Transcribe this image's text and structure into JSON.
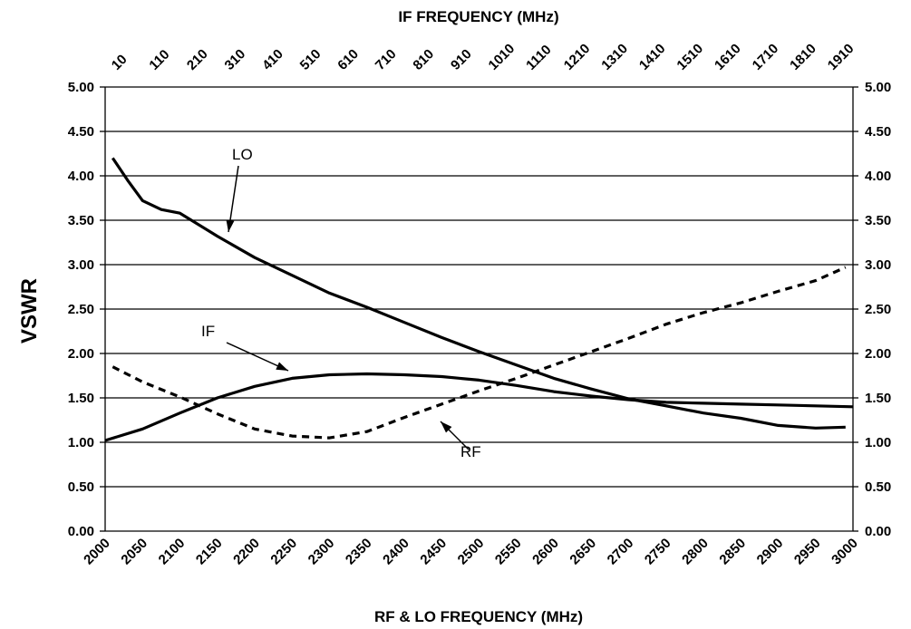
{
  "chart_data": {
    "type": "line",
    "title": "",
    "xlabel": "RF & LO FREQUENCY (MHz)",
    "x2label": "IF FREQUENCY (MHz)",
    "ylabel": "VSWR",
    "xlim": [
      2000,
      3000
    ],
    "ylim": [
      0,
      5
    ],
    "grid": "horizontal",
    "legend": "none",
    "x_ticks": [
      "2000",
      "2050",
      "2100",
      "2150",
      "2200",
      "2250",
      "2300",
      "2350",
      "2400",
      "2450",
      "2500",
      "2550",
      "2600",
      "2650",
      "2700",
      "2750",
      "2800",
      "2850",
      "2900",
      "2950",
      "3000"
    ],
    "x2_ticks": [
      "10",
      "110",
      "210",
      "310",
      "410",
      "510",
      "610",
      "710",
      "810",
      "910",
      "1010",
      "1110",
      "1210",
      "1310",
      "1410",
      "1510",
      "1610",
      "1710",
      "1810",
      "1910"
    ],
    "y_ticks": [
      "0.00",
      "0.50",
      "1.00",
      "1.50",
      "2.00",
      "2.50",
      "3.00",
      "3.50",
      "4.00",
      "4.50",
      "5.00"
    ],
    "series": [
      {
        "name": "LO",
        "style": "solid",
        "x": [
          2010,
          2030,
          2050,
          2075,
          2100,
          2150,
          2200,
          2250,
          2300,
          2350,
          2400,
          2450,
          2500,
          2550,
          2600,
          2650,
          2700,
          2750,
          2800,
          2850,
          2900,
          2950,
          2990
        ],
        "y": [
          4.2,
          3.95,
          3.72,
          3.62,
          3.58,
          3.32,
          3.08,
          2.88,
          2.68,
          2.52,
          2.35,
          2.18,
          2.02,
          1.87,
          1.72,
          1.6,
          1.49,
          1.41,
          1.33,
          1.27,
          1.19,
          1.16,
          1.17
        ]
      },
      {
        "name": "IF",
        "style": "solid",
        "x": [
          2000,
          2050,
          2100,
          2150,
          2200,
          2250,
          2300,
          2350,
          2400,
          2450,
          2500,
          2550,
          2600,
          2650,
          2700,
          2750,
          2800,
          2850,
          2900,
          2950,
          3000
        ],
        "y": [
          1.02,
          1.15,
          1.33,
          1.5,
          1.63,
          1.72,
          1.76,
          1.77,
          1.76,
          1.74,
          1.7,
          1.64,
          1.57,
          1.52,
          1.48,
          1.45,
          1.44,
          1.43,
          1.42,
          1.41,
          1.4
        ]
      },
      {
        "name": "RF",
        "style": "dashed",
        "x": [
          2010,
          2050,
          2100,
          2150,
          2200,
          2250,
          2300,
          2350,
          2400,
          2450,
          2500,
          2550,
          2600,
          2650,
          2700,
          2750,
          2800,
          2850,
          2900,
          2950,
          2990
        ],
        "y": [
          1.85,
          1.68,
          1.51,
          1.32,
          1.15,
          1.07,
          1.05,
          1.12,
          1.28,
          1.43,
          1.58,
          1.72,
          1.87,
          2.02,
          2.17,
          2.33,
          2.46,
          2.57,
          2.7,
          2.82,
          2.97
        ]
      }
    ],
    "annotations": [
      {
        "text": "LO",
        "target_series": "LO"
      },
      {
        "text": "IF",
        "target_series": "IF"
      },
      {
        "text": "RF",
        "target_series": "RF"
      }
    ]
  }
}
